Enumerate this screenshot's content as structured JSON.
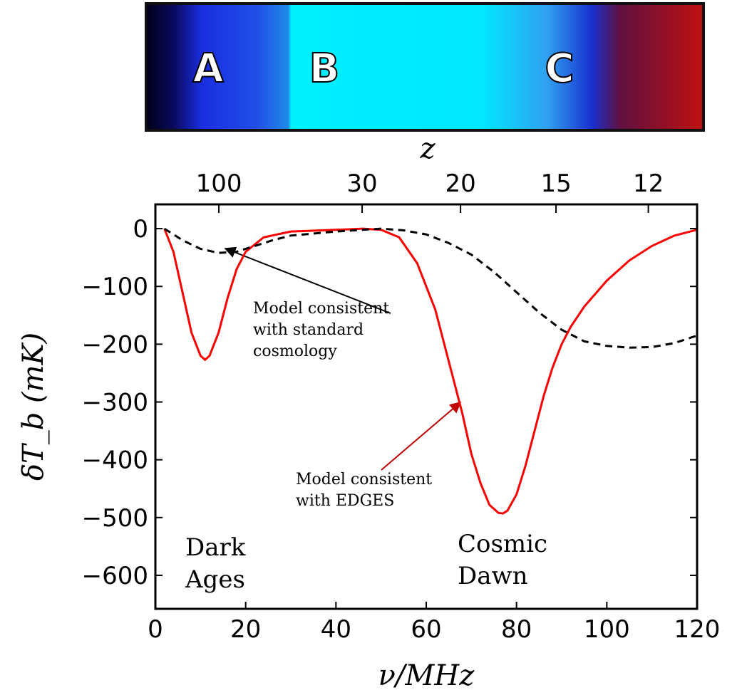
{
  "chart_data": {
    "type": "line",
    "x_label": "ν/MHz",
    "y_label": "δT_b (mK)",
    "x2_label": "z",
    "strip_labels": [
      "A",
      "B",
      "C"
    ],
    "xlim": [
      0,
      120
    ],
    "ylim": [
      -658,
      42
    ],
    "xticks": [
      0,
      20,
      40,
      60,
      80,
      100,
      120
    ],
    "yticks": [
      0,
      {
        "value": -100,
        "label": "−100"
      },
      {
        "value": -200,
        "label": "−200"
      },
      {
        "value": -300,
        "label": "−300"
      },
      {
        "value": -400,
        "label": "−400"
      },
      {
        "value": -500,
        "label": "−500"
      },
      {
        "value": -600,
        "label": "−600"
      }
    ],
    "x2ticks": [
      {
        "value": 14.06,
        "label": "100"
      },
      {
        "value": 45.8,
        "label": "30"
      },
      {
        "value": 67.6,
        "label": "20"
      },
      {
        "value": 88.75,
        "label": "15"
      },
      {
        "value": 109.2,
        "label": "12"
      }
    ],
    "series": [
      {
        "color": "#ff0000",
        "dash": false,
        "x": [
          2,
          4,
          6,
          8,
          10,
          11,
          12,
          14,
          16,
          18,
          20,
          24,
          30,
          40,
          46,
          50,
          54,
          58,
          62,
          66,
          68,
          70,
          72,
          74,
          76,
          77,
          78,
          80,
          82,
          84,
          86,
          88,
          90,
          92,
          95,
          100,
          105,
          110,
          115,
          120
        ],
        "values": [
          0,
          -40,
          -110,
          -180,
          -220,
          -227,
          -220,
          -180,
          -120,
          -70,
          -40,
          -15,
          -5,
          -2,
          0,
          -2,
          -15,
          -60,
          -140,
          -260,
          -320,
          -390,
          -440,
          -478,
          -492,
          -493,
          -488,
          -460,
          -410,
          -350,
          -290,
          -240,
          -200,
          -170,
          -135,
          -90,
          -55,
          -30,
          -12,
          -2
        ]
      },
      {
        "color": "#000000",
        "dash": true,
        "x": [
          2,
          6,
          10,
          14,
          18,
          22,
          26,
          30,
          40,
          50,
          55,
          60,
          65,
          70,
          75,
          80,
          85,
          90,
          95,
          100,
          105,
          110,
          115,
          120
        ],
        "values": [
          0,
          -20,
          -35,
          -42,
          -40,
          -30,
          -20,
          -12,
          -5,
          0,
          -3,
          -10,
          -25,
          -45,
          -75,
          -110,
          -145,
          -175,
          -195,
          -203,
          -206,
          -205,
          -198,
          -185
        ]
      }
    ],
    "annotations": [
      {
        "lines": [
          "Model consistent",
          "with standard",
          "cosmology"
        ],
        "color": "#000000"
      },
      {
        "lines": [
          "Model consistent",
          "with EDGES"
        ],
        "color": "#c00000"
      },
      {
        "lines": [
          "Dark",
          "Ages"
        ],
        "color": "#000000"
      },
      {
        "lines": [
          "Cosmic",
          "Dawn"
        ],
        "color": "#000000"
      }
    ]
  }
}
